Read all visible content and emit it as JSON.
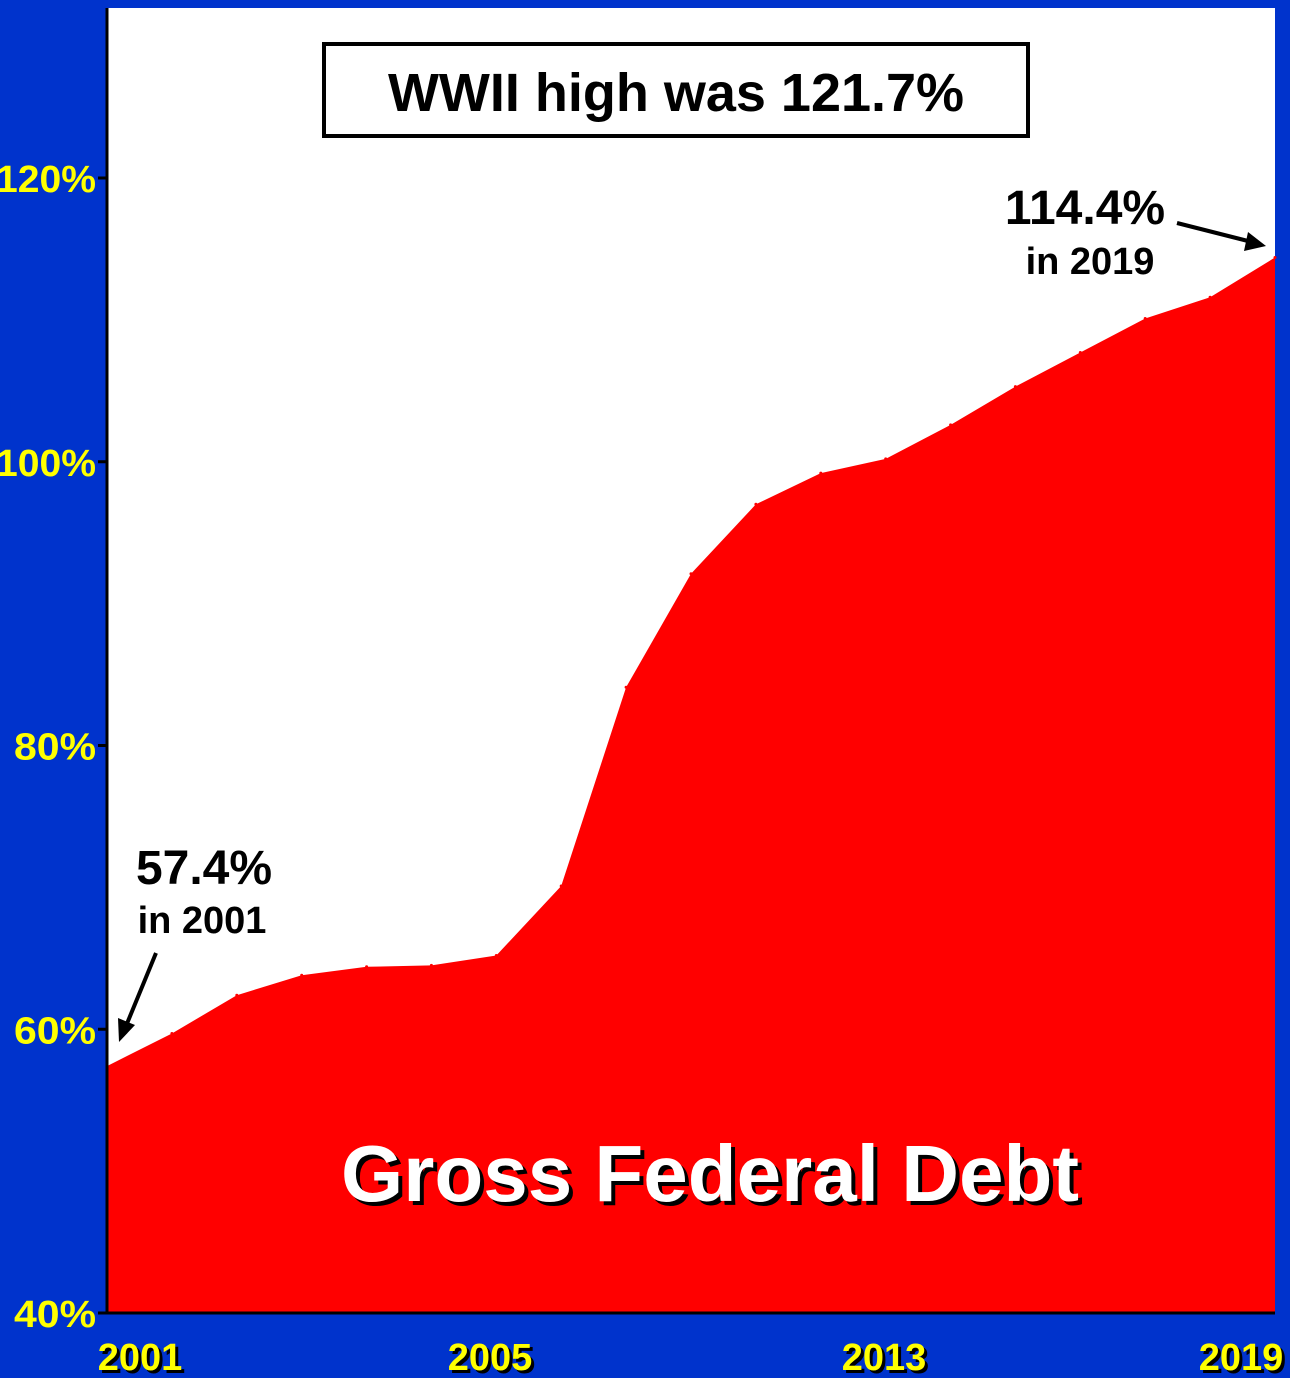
{
  "chart_data": {
    "type": "area",
    "title": "",
    "xlabel": "",
    "ylabel": "",
    "series": [
      {
        "name": "Gross Federal Debt",
        "x": [
          2001,
          2002,
          2003,
          2004,
          2005,
          2006,
          2007,
          2008,
          2009,
          2010,
          2011,
          2012,
          2013,
          2014,
          2015,
          2016,
          2017,
          2018,
          2019
        ],
        "values": [
          57.4,
          59.7,
          62.4,
          63.8,
          64.4,
          64.5,
          65.2,
          70.1,
          84.1,
          92.1,
          97.0,
          99.2,
          100.2,
          102.6,
          105.3,
          107.7,
          110.1,
          111.6,
          114.4
        ],
        "color": "#ff0000"
      }
    ],
    "ylim": [
      40,
      120
    ],
    "ytick_labels": [
      "40%",
      "60%",
      "80%",
      "100%",
      "120%"
    ],
    "yticks": [
      40,
      60,
      80,
      100,
      120
    ],
    "xlim": [
      2001,
      2019
    ],
    "xtick_labels": [
      "2001",
      "2005",
      "2013",
      "2019"
    ],
    "grid": false,
    "annotations": {
      "note": "WWII high was 121.7%",
      "start_value": "57.4%",
      "start_year": "in 2001",
      "end_value": "114.4%",
      "end_year": "in 2019"
    }
  },
  "colors": {
    "background": "#0033cc",
    "plot_area": "#ffffff",
    "area_fill": "#ff0000",
    "tick_text": "#ffff00"
  }
}
